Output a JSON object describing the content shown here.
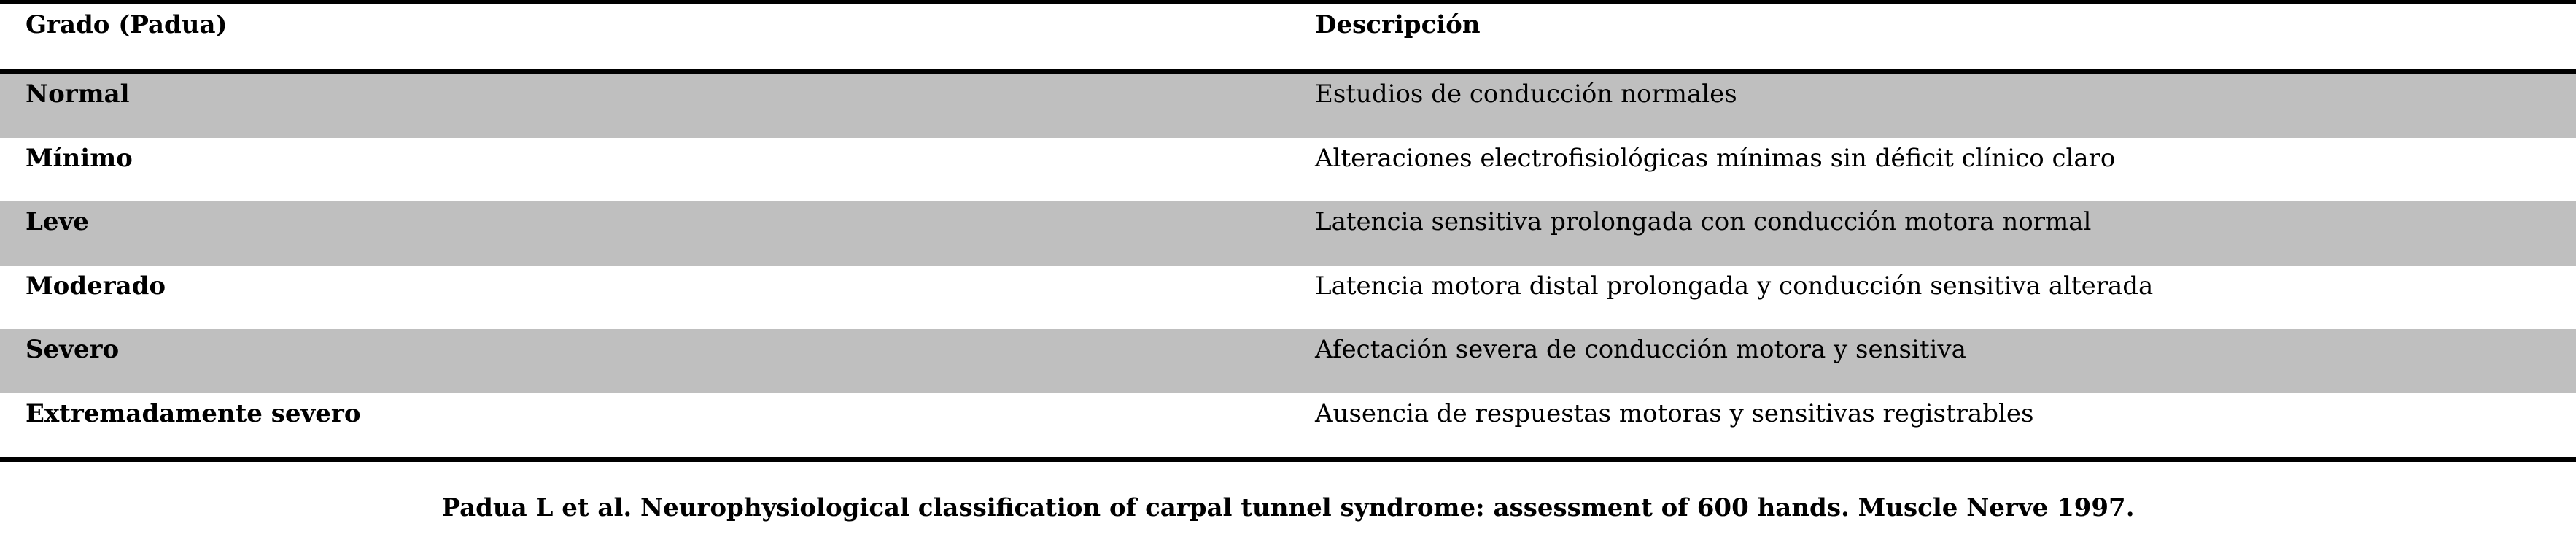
{
  "table": {
    "headers": {
      "grade": "Grado (Padua)",
      "description": "Descripción"
    },
    "rows": [
      {
        "grade": "Normal",
        "description": "Estudios de conducción normales",
        "shaded": true
      },
      {
        "grade": "Mínimo",
        "description": "Alteraciones electrofisiológicas mínimas sin déficit clínico claro",
        "shaded": false
      },
      {
        "grade": "Leve",
        "description": "Latencia sensitiva prolongada con conducción motora normal",
        "shaded": true
      },
      {
        "grade": "Moderado",
        "description": "Latencia motora distal prolongada y conducción sensitiva alterada",
        "shaded": false
      },
      {
        "grade": "Severo",
        "description": "Afectación severa de conducción motora y sensitiva",
        "shaded": true
      },
      {
        "grade": "Extremadamente severo",
        "description": "Ausencia de respuestas motoras y sensitivas registrables",
        "shaded": false
      }
    ],
    "shade_color": "#bfbfbf"
  },
  "caption": "Padua L et al. Neurophysiological classification of carpal tunnel syndrome: assessment of 600 hands. Muscle Nerve 1997."
}
